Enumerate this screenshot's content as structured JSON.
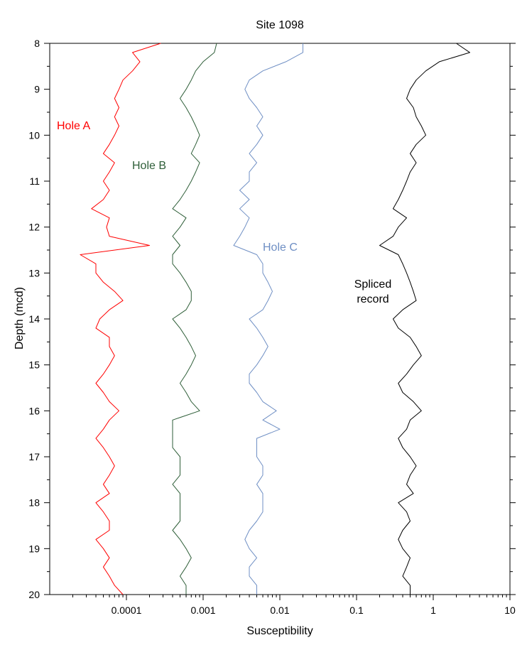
{
  "chart_data": {
    "type": "line",
    "title": "Site 1098",
    "xlabel": "Susceptibility",
    "ylabel": "Depth (mcd)",
    "x_scale": "log",
    "xlim": [
      1e-05,
      10
    ],
    "ylim": [
      8,
      20
    ],
    "y_inverted": true,
    "x_ticks": [
      "0.0001",
      "0.001",
      "0.01",
      "0.1",
      "1",
      "10"
    ],
    "y_ticks": [
      "8",
      "9",
      "10",
      "11",
      "12",
      "13",
      "14",
      "15",
      "16",
      "17",
      "18",
      "19",
      "20"
    ],
    "grid": false,
    "series": [
      {
        "name": "Hole A",
        "color": "#ff0000",
        "depth": [
          8.0,
          8.2,
          8.4,
          8.6,
          8.8,
          9.0,
          9.2,
          9.4,
          9.6,
          9.8,
          10.0,
          10.2,
          10.4,
          10.6,
          10.8,
          11.0,
          11.2,
          11.4,
          11.6,
          11.8,
          12.0,
          12.2,
          12.4,
          12.6,
          12.8,
          13.0,
          13.2,
          13.4,
          13.6,
          13.8,
          14.0,
          14.2,
          14.4,
          14.6,
          14.8,
          15.0,
          15.2,
          15.4,
          15.6,
          15.8,
          16.0,
          16.2,
          16.4,
          16.6,
          16.8,
          17.0,
          17.2,
          17.4,
          17.6,
          17.8,
          18.0,
          18.2,
          18.4,
          18.6,
          18.8,
          19.0,
          19.2,
          19.4,
          19.6,
          19.8,
          20.0
        ],
        "susceptibility": [
          0.00028,
          0.00012,
          0.00015,
          0.00012,
          9e-05,
          8e-05,
          7e-05,
          8e-05,
          7e-05,
          8e-05,
          7e-05,
          6e-05,
          5e-05,
          7e-05,
          6e-05,
          5e-05,
          6e-05,
          5e-05,
          3.5e-05,
          6e-05,
          5.5e-05,
          6e-05,
          0.0002,
          2.5e-05,
          4e-05,
          4e-05,
          5e-05,
          7e-05,
          9e-05,
          6e-05,
          4.5e-05,
          4e-05,
          6e-05,
          6e-05,
          7e-05,
          6e-05,
          5e-05,
          4e-05,
          5e-05,
          6e-05,
          8e-05,
          6e-05,
          5e-05,
          4e-05,
          5e-05,
          6e-05,
          7e-05,
          6e-05,
          5e-05,
          6e-05,
          4e-05,
          5e-05,
          6e-05,
          6e-05,
          4e-05,
          5e-05,
          6e-05,
          5e-05,
          6e-05,
          7e-05,
          9e-05
        ]
      },
      {
        "name": "Hole B",
        "color": "#2e5e38",
        "depth": [
          8.0,
          8.2,
          8.4,
          8.6,
          8.8,
          9.0,
          9.2,
          9.4,
          9.6,
          9.8,
          10.0,
          10.2,
          10.4,
          10.6,
          10.8,
          11.0,
          11.2,
          11.4,
          11.6,
          11.8,
          12.0,
          12.2,
          12.4,
          12.6,
          12.8,
          13.0,
          13.2,
          13.4,
          13.6,
          13.8,
          14.0,
          14.2,
          14.4,
          14.6,
          14.8,
          15.0,
          15.2,
          15.4,
          15.6,
          15.8,
          16.0,
          16.2,
          16.4,
          16.6,
          16.8,
          17.0,
          17.2,
          17.4,
          17.6,
          17.8,
          18.0,
          18.2,
          18.4,
          18.6,
          18.8,
          19.0,
          19.2,
          19.4,
          19.6,
          19.8,
          20.0
        ],
        "susceptibility": [
          0.0015,
          0.0014,
          0.001,
          0.0008,
          0.0007,
          0.0006,
          0.0005,
          0.0006,
          0.0007,
          0.0008,
          0.0009,
          0.0008,
          0.0007,
          0.0009,
          0.0008,
          0.0007,
          0.0006,
          0.0005,
          0.0004,
          0.0006,
          0.0005,
          0.0004,
          0.0005,
          0.0004,
          0.0004,
          0.0005,
          0.0006,
          0.0007,
          0.0007,
          0.0006,
          0.0004,
          0.0005,
          0.0006,
          0.0007,
          0.0008,
          0.0007,
          0.0006,
          0.0005,
          0.0006,
          0.0007,
          0.0009,
          0.0004,
          0.0004,
          0.0004,
          0.0004,
          0.0005,
          0.0005,
          0.0005,
          0.0004,
          0.0005,
          0.0005,
          0.0005,
          0.0005,
          0.0004,
          0.0005,
          0.0006,
          0.0007,
          0.0006,
          0.0005,
          0.0006,
          0.0006
        ]
      },
      {
        "name": "Hole C",
        "color": "#6f8fc4",
        "depth": [
          8.0,
          8.2,
          8.4,
          8.6,
          8.8,
          9.0,
          9.2,
          9.4,
          9.6,
          9.8,
          10.0,
          10.2,
          10.4,
          10.6,
          10.8,
          11.0,
          11.2,
          11.4,
          11.6,
          11.8,
          12.0,
          12.2,
          12.4,
          12.6,
          12.8,
          13.0,
          13.2,
          13.4,
          13.6,
          13.8,
          14.0,
          14.2,
          14.4,
          14.6,
          14.8,
          15.0,
          15.2,
          15.4,
          15.6,
          15.8,
          16.0,
          16.2,
          16.4,
          16.6,
          16.8,
          17.0,
          17.2,
          17.4,
          17.6,
          17.8,
          18.0,
          18.2,
          18.4,
          18.6,
          18.8,
          19.0,
          19.2,
          19.4,
          19.6,
          19.8,
          20.0
        ],
        "susceptibility": [
          0.02,
          0.02,
          0.012,
          0.006,
          0.004,
          0.0035,
          0.004,
          0.005,
          0.006,
          0.005,
          0.006,
          0.005,
          0.004,
          0.005,
          0.004,
          0.004,
          0.003,
          0.004,
          0.003,
          0.004,
          0.0035,
          0.003,
          0.0025,
          0.005,
          0.006,
          0.006,
          0.007,
          0.008,
          0.007,
          0.006,
          0.004,
          0.005,
          0.006,
          0.007,
          0.006,
          0.005,
          0.004,
          0.004,
          0.005,
          0.006,
          0.009,
          0.006,
          0.01,
          0.005,
          0.005,
          0.005,
          0.006,
          0.006,
          0.005,
          0.006,
          0.006,
          0.006,
          0.005,
          0.004,
          0.0035,
          0.004,
          0.005,
          0.004,
          0.004,
          0.005,
          0.005
        ]
      },
      {
        "name": "Spliced record",
        "color": "#000000",
        "depth": [
          8.0,
          8.2,
          8.4,
          8.6,
          8.8,
          9.0,
          9.2,
          9.4,
          9.6,
          9.8,
          10.0,
          10.2,
          10.4,
          10.6,
          10.8,
          11.0,
          11.2,
          11.4,
          11.6,
          11.8,
          12.0,
          12.2,
          12.4,
          12.6,
          12.8,
          13.0,
          13.2,
          13.4,
          13.6,
          13.8,
          14.0,
          14.2,
          14.4,
          14.6,
          14.8,
          15.0,
          15.2,
          15.4,
          15.6,
          15.8,
          16.0,
          16.2,
          16.4,
          16.6,
          16.8,
          17.0,
          17.2,
          17.4,
          17.6,
          17.8,
          18.0,
          18.2,
          18.4,
          18.6,
          18.8,
          19.0,
          19.2,
          19.4,
          19.6,
          19.8,
          20.0
        ],
        "susceptibility": [
          2.0,
          3.0,
          1.2,
          0.8,
          0.6,
          0.5,
          0.45,
          0.55,
          0.6,
          0.7,
          0.8,
          0.6,
          0.5,
          0.6,
          0.5,
          0.45,
          0.4,
          0.35,
          0.3,
          0.45,
          0.35,
          0.3,
          0.2,
          0.35,
          0.4,
          0.45,
          0.5,
          0.55,
          0.6,
          0.4,
          0.3,
          0.35,
          0.5,
          0.6,
          0.7,
          0.55,
          0.45,
          0.35,
          0.4,
          0.55,
          0.7,
          0.5,
          0.45,
          0.35,
          0.4,
          0.5,
          0.6,
          0.5,
          0.45,
          0.55,
          0.35,
          0.45,
          0.5,
          0.4,
          0.35,
          0.4,
          0.5,
          0.45,
          0.4,
          0.5,
          0.5
        ]
      }
    ]
  }
}
